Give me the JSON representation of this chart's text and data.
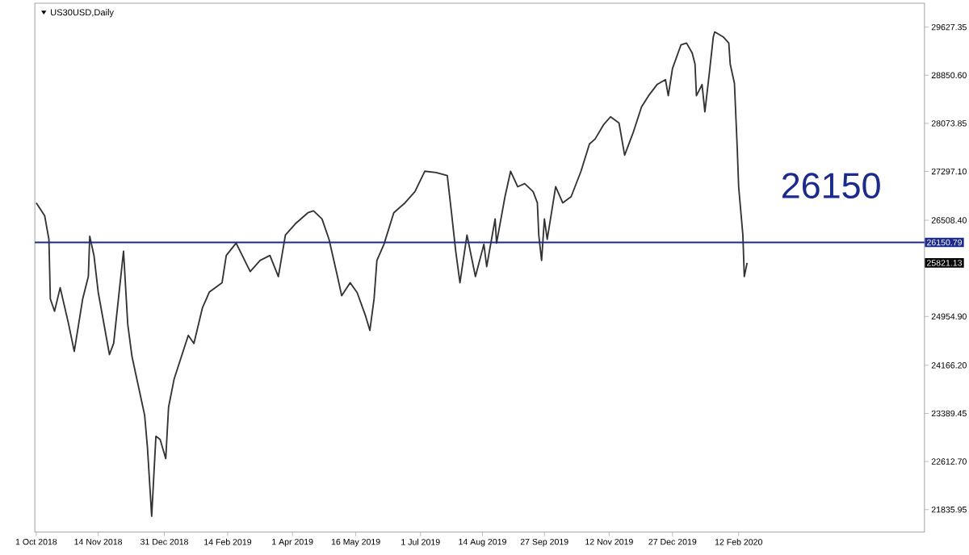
{
  "chart_data": {
    "type": "line",
    "title": "US30USD,Daily",
    "x": [
      "2018-10-01",
      "2018-10-07",
      "2018-10-10",
      "2018-10-11",
      "2018-10-14",
      "2018-10-18",
      "2018-10-24",
      "2018-10-28",
      "2018-11-03",
      "2018-11-07",
      "2018-11-08",
      "2018-11-11",
      "2018-11-14",
      "2018-11-22",
      "2018-11-25",
      "2018-12-02",
      "2018-12-05",
      "2018-12-08",
      "2018-12-17",
      "2018-12-19",
      "2018-12-22",
      "2018-12-25",
      "2018-12-28",
      "2019-01-01",
      "2019-01-03",
      "2019-01-07",
      "2019-01-17",
      "2019-01-21",
      "2019-01-27",
      "2019-02-01",
      "2019-02-10",
      "2019-02-13",
      "2019-02-20",
      "2019-03-02",
      "2019-03-09",
      "2019-03-16",
      "2019-03-22",
      "2019-03-27",
      "2019-04-03",
      "2019-04-12",
      "2019-04-16",
      "2019-04-22",
      "2019-04-27",
      "2019-05-03",
      "2019-05-06",
      "2019-05-12",
      "2019-05-17",
      "2019-05-23",
      "2019-05-26",
      "2019-05-29",
      "2019-05-31",
      "2019-06-05",
      "2019-06-12",
      "2019-06-20",
      "2019-06-27",
      "2019-07-04",
      "2019-07-12",
      "2019-07-20",
      "2019-07-23",
      "2019-07-26",
      "2019-07-29",
      "2019-08-03",
      "2019-08-09",
      "2019-08-15",
      "2019-08-17",
      "2019-08-23",
      "2019-08-24",
      "2019-08-30",
      "2019-09-03",
      "2019-09-08",
      "2019-09-13",
      "2019-09-19",
      "2019-09-22",
      "2019-09-23",
      "2019-09-25",
      "2019-09-27",
      "2019-09-29",
      "2019-10-05",
      "2019-10-10",
      "2019-10-16",
      "2019-10-23",
      "2019-10-29",
      "2019-11-02",
      "2019-11-08",
      "2019-11-13",
      "2019-11-19",
      "2019-11-23",
      "2019-11-29",
      "2019-12-05",
      "2019-12-10",
      "2019-12-16",
      "2019-12-22",
      "2019-12-24",
      "2019-12-27",
      "2020-01-02",
      "2020-01-06",
      "2020-01-10",
      "2020-01-12",
      "2020-01-13",
      "2020-01-17",
      "2020-01-19",
      "2020-01-22",
      "2020-01-25",
      "2020-01-26",
      "2020-02-01",
      "2020-02-05",
      "2020-02-06",
      "2020-02-09",
      "2020-02-11",
      "2020-02-12",
      "2020-02-15",
      "2020-02-16",
      "2020-02-18"
    ],
    "series": [
      {
        "color": "#333333",
        "values": [
          26790,
          26580,
          26200,
          25240,
          25040,
          25420,
          24830,
          24390,
          25240,
          25600,
          26250,
          25940,
          25350,
          24340,
          24520,
          26010,
          24830,
          24310,
          23360,
          22840,
          21730,
          23020,
          22970,
          22660,
          23490,
          23950,
          24650,
          24520,
          25090,
          25350,
          25500,
          25940,
          26140,
          25680,
          25860,
          25940,
          25600,
          26270,
          26450,
          26630,
          26660,
          26530,
          26200,
          25600,
          25290,
          25500,
          25340,
          24960,
          24730,
          25240,
          25860,
          26120,
          26630,
          26790,
          26970,
          27300,
          27280,
          27230,
          26630,
          26010,
          25500,
          26270,
          25600,
          26120,
          25760,
          26530,
          26140,
          26890,
          27300,
          27050,
          27100,
          26970,
          26790,
          26270,
          25860,
          26530,
          26200,
          27050,
          26790,
          26890,
          27300,
          27740,
          27820,
          28050,
          28180,
          28080,
          27560,
          27920,
          28340,
          28520,
          28700,
          28780,
          28520,
          28960,
          29340,
          29370,
          29210,
          29030,
          28520,
          28700,
          28260,
          28850,
          29470,
          29550,
          29470,
          29370,
          29030,
          28720,
          27670,
          27050,
          26270,
          25600,
          25820
        ]
      }
    ],
    "xlim": [
      "2018-09-30",
      "2020-06-23"
    ],
    "ylim": [
      21475,
      30014
    ],
    "xticks": [
      {
        "value": "2018-10-01",
        "label": "1 Oct 2018"
      },
      {
        "value": "2018-11-14",
        "label": "14 Nov 2018"
      },
      {
        "value": "2018-12-31",
        "label": "31 Dec 2018"
      },
      {
        "value": "2019-02-14",
        "label": "14 Feb 2019"
      },
      {
        "value": "2019-04-01",
        "label": "1 Apr 2019"
      },
      {
        "value": "2019-05-16",
        "label": "16 May 2019"
      },
      {
        "value": "2019-07-01",
        "label": "1 Jul 2019"
      },
      {
        "value": "2019-08-14",
        "label": "14 Aug 2019"
      },
      {
        "value": "2019-09-27",
        "label": "27 Sep 2019"
      },
      {
        "value": "2019-11-12",
        "label": "12 Nov 2019"
      },
      {
        "value": "2019-12-27",
        "label": "27 Dec 2019"
      },
      {
        "value": "2020-02-12",
        "label": "12 Feb 2020"
      }
    ],
    "yticks": [
      {
        "value": 29627.35,
        "label": "29627.35"
      },
      {
        "value": 28850.6,
        "label": "28850.60"
      },
      {
        "value": 28073.85,
        "label": "28073.85"
      },
      {
        "value": 27297.1,
        "label": "27297.10"
      },
      {
        "value": 26508.4,
        "label": "26508.40"
      },
      {
        "value": 24954.9,
        "label": "24954.90"
      },
      {
        "value": 24166.2,
        "label": "24166.20"
      },
      {
        "value": 23389.45,
        "label": "23389.45"
      },
      {
        "value": 22612.7,
        "label": "22612.70"
      },
      {
        "value": 21835.95,
        "label": "21835.95"
      }
    ],
    "ref_lines": [
      {
        "axis": "y",
        "value": 26150.79,
        "label": "26150.79",
        "color": "#1c2a8c"
      }
    ],
    "annotations": [
      "26150",
      "25821.13"
    ],
    "marker": "none",
    "line_style": "solid",
    "grid": false
  }
}
